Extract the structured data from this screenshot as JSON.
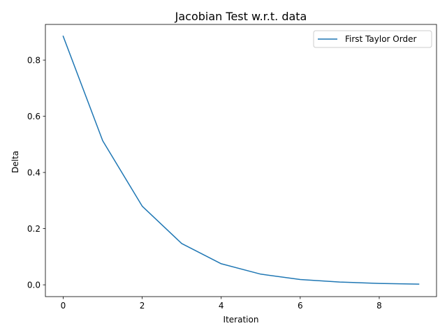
{
  "chart_data": {
    "type": "line",
    "title": "Jacobian Test w.r.t. data",
    "xlabel": "Iteration",
    "ylabel": "Delta",
    "x": [
      0,
      1,
      2,
      3,
      4,
      5,
      6,
      7,
      8,
      9
    ],
    "series": [
      {
        "name": "First Taylor Order",
        "color": "#1f77b4",
        "values": [
          0.885,
          0.513,
          0.28,
          0.147,
          0.075,
          0.038,
          0.019,
          0.01,
          0.005,
          0.0025
        ]
      }
    ],
    "xlim": [
      -0.45,
      9.45
    ],
    "ylim": [
      -0.042,
      0.927
    ],
    "xticks": [
      0,
      2,
      4,
      6,
      8
    ],
    "xtick_labels": [
      "0",
      "2",
      "4",
      "6",
      "8"
    ],
    "yticks": [
      0.0,
      0.2,
      0.4,
      0.6,
      0.8
    ],
    "ytick_labels": [
      "0.0",
      "0.2",
      "0.4",
      "0.6",
      "0.8"
    ],
    "grid": false,
    "legend_position": "top-right"
  }
}
